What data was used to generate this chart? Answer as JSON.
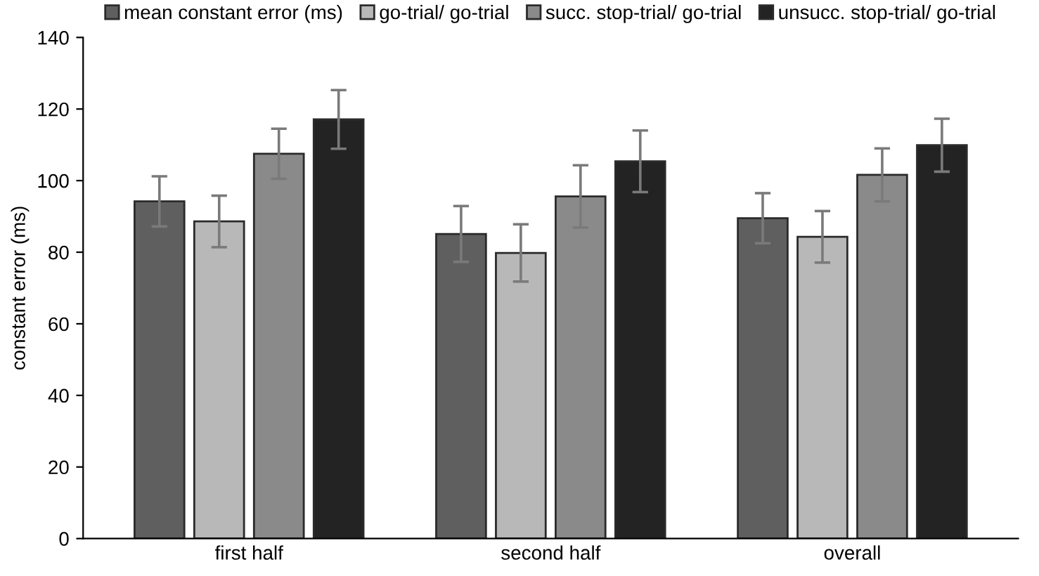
{
  "chart_data": {
    "type": "bar",
    "ylabel": "constant error (ms)",
    "categories": [
      "first half",
      "second half",
      "overall"
    ],
    "series": [
      {
        "name": "mean constant error (ms)",
        "color": "#5f5f5f",
        "values": [
          94.2,
          85.1,
          89.5
        ],
        "errors": [
          7,
          7.8,
          7
        ]
      },
      {
        "name": "go-trial/ go-trial",
        "color": "#b8b8b8",
        "values": [
          88.6,
          79.8,
          84.3
        ],
        "errors": [
          7.2,
          8,
          7.2
        ]
      },
      {
        "name": "succ. stop-trial/ go-trial",
        "color": "#8a8a8a",
        "values": [
          107.5,
          95.6,
          101.6
        ],
        "errors": [
          7,
          8.7,
          7.4
        ]
      },
      {
        "name": "unsucc. stop-trial/ go-trial",
        "color": "#232323",
        "values": [
          117.1,
          105.4,
          109.9
        ],
        "errors": [
          8.2,
          8.6,
          7.4
        ]
      }
    ],
    "ylim": [
      0,
      140
    ],
    "yticks": [
      0,
      20,
      40,
      60,
      80,
      100,
      120,
      140
    ],
    "grid": false,
    "legend": "top"
  }
}
